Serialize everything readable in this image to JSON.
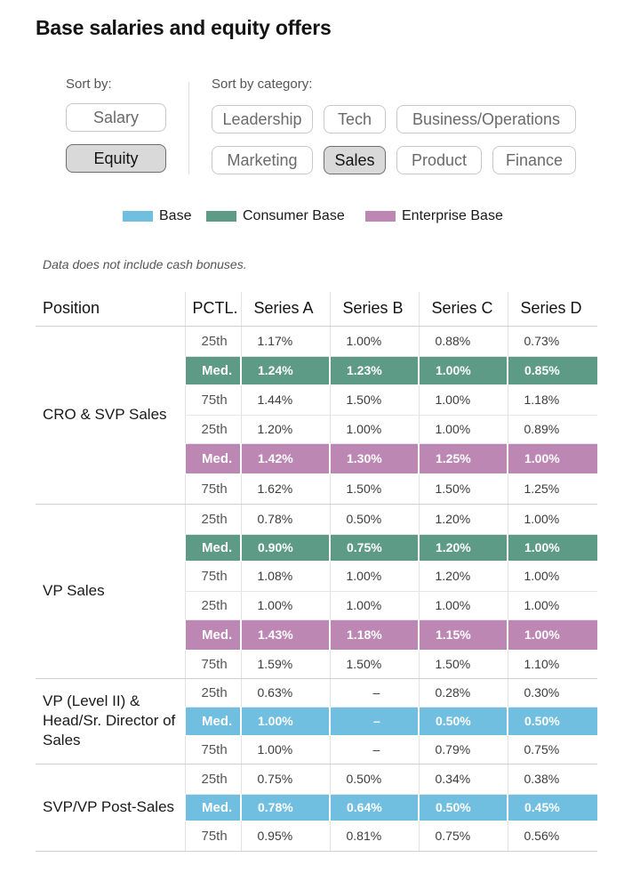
{
  "title": "Base salaries and equity offers",
  "sort_by": {
    "label": "Sort by:",
    "options": [
      {
        "label": "Salary",
        "active": false
      },
      {
        "label": "Equity",
        "active": true
      }
    ]
  },
  "sort_by_category": {
    "label": "Sort by category:",
    "options": [
      {
        "label": "Leadership",
        "active": false
      },
      {
        "label": "Tech",
        "active": false
      },
      {
        "label": "Business/Operations",
        "active": false
      },
      {
        "label": "Marketing",
        "active": false
      },
      {
        "label": "Sales",
        "active": true
      },
      {
        "label": "Product",
        "active": false
      },
      {
        "label": "Finance",
        "active": false
      }
    ]
  },
  "legend": [
    {
      "label": "Base",
      "color": "#70bfe0"
    },
    {
      "label": "Consumer Base",
      "color": "#5e9b87"
    },
    {
      "label": "Enterprise Base",
      "color": "#bd87b4"
    }
  ],
  "note": "Data does not include cash bonuses.",
  "table": {
    "headers": [
      "Position",
      "PCTL.",
      "Series A",
      "Series B",
      "Series C",
      "Series D"
    ],
    "groups": [
      {
        "position": "CRO & SVP Sales",
        "rows": [
          {
            "pctl": "25th",
            "values": [
              "1.17%",
              "1.00%",
              "0.88%",
              "0.73%"
            ],
            "highlight": ""
          },
          {
            "pctl": "Med.",
            "values": [
              "1.24%",
              "1.23%",
              "1.00%",
              "0.85%"
            ],
            "highlight": "consumer"
          },
          {
            "pctl": "75th",
            "values": [
              "1.44%",
              "1.50%",
              "1.00%",
              "1.18%"
            ],
            "highlight": ""
          },
          {
            "pctl": "25th",
            "values": [
              "1.20%",
              "1.00%",
              "1.00%",
              "0.89%"
            ],
            "highlight": ""
          },
          {
            "pctl": "Med.",
            "values": [
              "1.42%",
              "1.30%",
              "1.25%",
              "1.00%"
            ],
            "highlight": "enterprise"
          },
          {
            "pctl": "75th",
            "values": [
              "1.62%",
              "1.50%",
              "1.50%",
              "1.25%"
            ],
            "highlight": ""
          }
        ]
      },
      {
        "position": "VP Sales",
        "rows": [
          {
            "pctl": "25th",
            "values": [
              "0.78%",
              "0.50%",
              "1.20%",
              "1.00%"
            ],
            "highlight": ""
          },
          {
            "pctl": "Med.",
            "values": [
              "0.90%",
              "0.75%",
              "1.20%",
              "1.00%"
            ],
            "highlight": "consumer"
          },
          {
            "pctl": "75th",
            "values": [
              "1.08%",
              "1.00%",
              "1.20%",
              "1.00%"
            ],
            "highlight": ""
          },
          {
            "pctl": "25th",
            "values": [
              "1.00%",
              "1.00%",
              "1.00%",
              "1.00%"
            ],
            "highlight": ""
          },
          {
            "pctl": "Med.",
            "values": [
              "1.43%",
              "1.18%",
              "1.15%",
              "1.00%"
            ],
            "highlight": "enterprise"
          },
          {
            "pctl": "75th",
            "values": [
              "1.59%",
              "1.50%",
              "1.50%",
              "1.10%"
            ],
            "highlight": ""
          }
        ]
      },
      {
        "position": "VP (Level II) & Head/Sr. Director of Sales",
        "rows": [
          {
            "pctl": "25th",
            "values": [
              "0.63%",
              "–",
              "0.28%",
              "0.30%"
            ],
            "highlight": ""
          },
          {
            "pctl": "Med.",
            "values": [
              "1.00%",
              "–",
              "0.50%",
              "0.50%"
            ],
            "highlight": "base"
          },
          {
            "pctl": "75th",
            "values": [
              "1.00%",
              "–",
              "0.79%",
              "0.75%"
            ],
            "highlight": ""
          }
        ]
      },
      {
        "position": "SVP/VP Post-Sales",
        "rows": [
          {
            "pctl": "25th",
            "values": [
              "0.75%",
              "0.50%",
              "0.34%",
              "0.38%"
            ],
            "highlight": ""
          },
          {
            "pctl": "Med.",
            "values": [
              "0.78%",
              "0.64%",
              "0.50%",
              "0.45%"
            ],
            "highlight": "base"
          },
          {
            "pctl": "75th",
            "values": [
              "0.95%",
              "0.81%",
              "0.75%",
              "0.56%"
            ],
            "highlight": ""
          }
        ]
      }
    ]
  }
}
